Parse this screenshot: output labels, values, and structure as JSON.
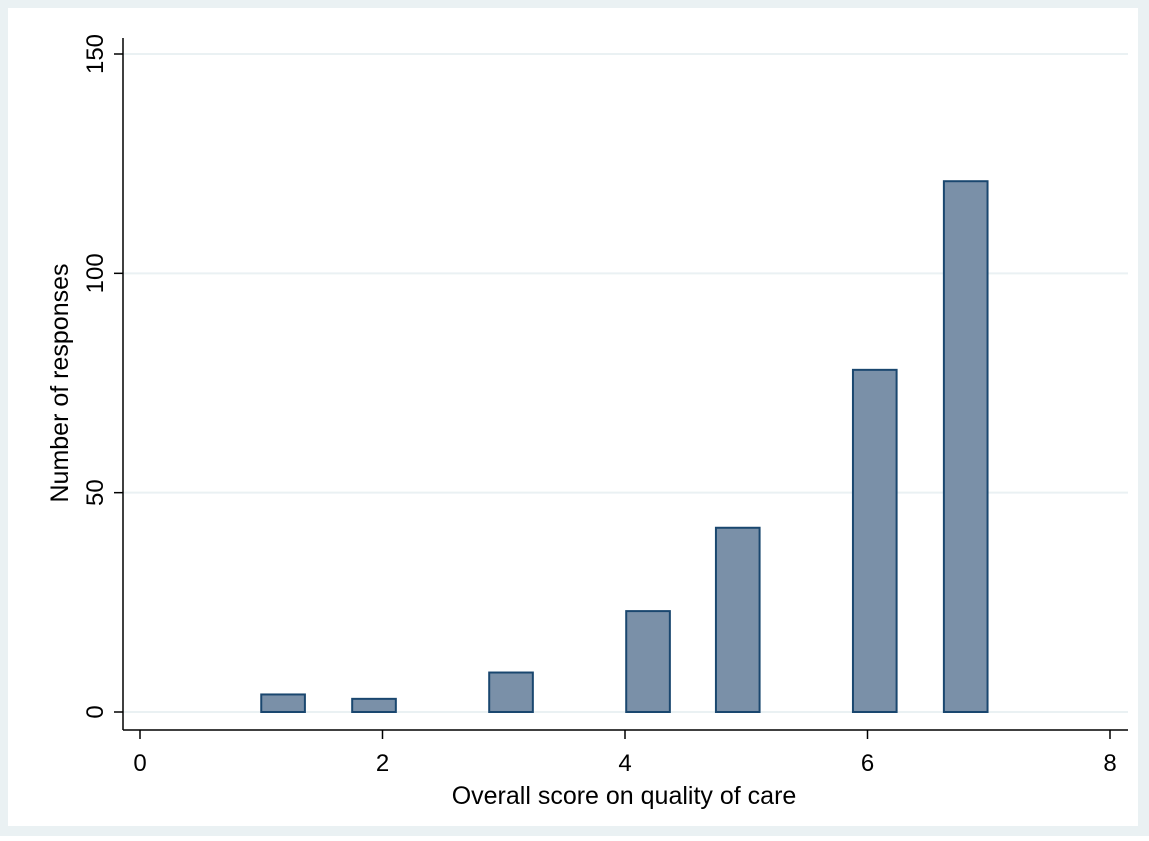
{
  "chart_data": {
    "type": "bar",
    "title": "",
    "xlabel": "Overall score on quality of care",
    "ylabel": "Number of responses",
    "xlim": [
      0,
      8
    ],
    "ylim": [
      0,
      150
    ],
    "x_ticks": [
      "0",
      "2",
      "4",
      "6",
      "8"
    ],
    "y_ticks": [
      "0",
      "50",
      "100",
      "150"
    ],
    "grid": true,
    "legend": "none",
    "bar_width": 0.36,
    "series": [
      {
        "x": [
          1.18,
          1.93,
          3.06,
          4.19,
          4.93,
          6.06,
          6.81
        ],
        "values": [
          4,
          3,
          9,
          23,
          42,
          78,
          121
        ]
      }
    ],
    "colors": {
      "outer_background": "#eaf1f3",
      "plot_background": "#ffffff",
      "bar_fill": "#7a90a8",
      "bar_stroke": "#1a476f",
      "gridline": "#eaf1f3",
      "axis": "#000000"
    }
  }
}
